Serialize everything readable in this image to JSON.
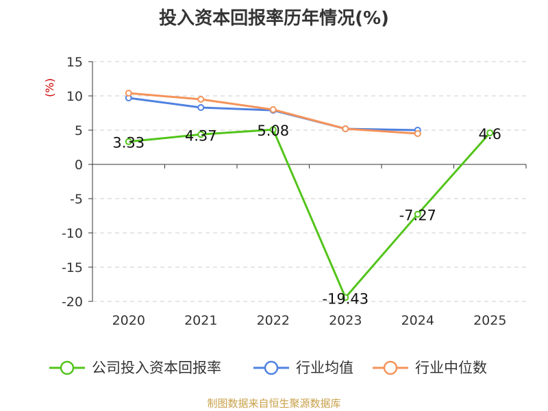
{
  "chart_data": {
    "type": "line",
    "title": "投入资本回报率历年情况(%)",
    "ylabel": "(%)",
    "xlabel": "",
    "categories": [
      "2020",
      "2021",
      "2022",
      "2023",
      "2024",
      "2025"
    ],
    "ylim": [
      -20,
      15
    ],
    "yticks": [
      15,
      10,
      5,
      0,
      -5,
      -10,
      -15,
      -20
    ],
    "grid": true,
    "legend_position": "bottom",
    "series": [
      {
        "name": "公司投入资本回报率",
        "color": "#52c41a",
        "values": [
          3.33,
          4.37,
          5.08,
          -19.43,
          -7.27,
          4.6
        ],
        "labels": [
          "3.33",
          "4.37",
          "5.08",
          "-19.43",
          "-7.27",
          "4.6"
        ]
      },
      {
        "name": "行业均值",
        "color": "#4f81e0",
        "values": [
          9.7,
          8.3,
          7.9,
          5.2,
          5.0,
          null
        ]
      },
      {
        "name": "行业中位数",
        "color": "#f4935a",
        "values": [
          10.4,
          9.5,
          8.0,
          5.2,
          4.5,
          null
        ]
      }
    ]
  },
  "source": "制图数据来自恒生聚源数据库"
}
